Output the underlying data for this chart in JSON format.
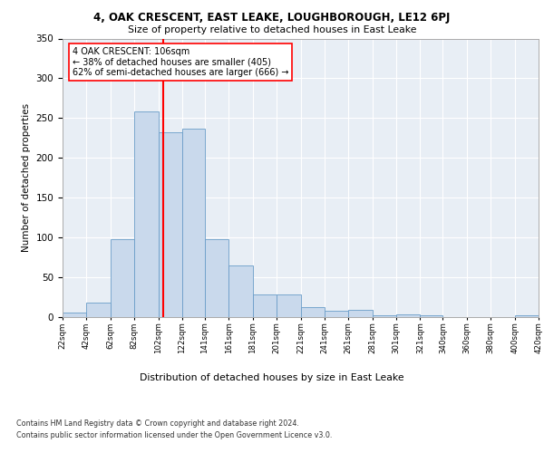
{
  "title1": "4, OAK CRESCENT, EAST LEAKE, LOUGHBOROUGH, LE12 6PJ",
  "title2": "Size of property relative to detached houses in East Leake",
  "xlabel": "Distribution of detached houses by size in East Leake",
  "ylabel": "Number of detached properties",
  "bin_labels": [
    "22sqm",
    "42sqm",
    "62sqm",
    "82sqm",
    "102sqm",
    "122sqm",
    "141sqm",
    "161sqm",
    "181sqm",
    "201sqm",
    "221sqm",
    "241sqm",
    "261sqm",
    "281sqm",
    "301sqm",
    "321sqm",
    "340sqm",
    "360sqm",
    "380sqm",
    "400sqm",
    "420sqm"
  ],
  "bar_values": [
    6,
    18,
    98,
    258,
    232,
    237,
    98,
    65,
    29,
    29,
    13,
    8,
    9,
    2,
    3,
    2,
    0,
    0,
    0,
    2
  ],
  "bar_color": "#c9d9ec",
  "bar_edge_color": "#6a9dc8",
  "vline_x": 106,
  "vline_color": "red",
  "annotation_text": "4 OAK CRESCENT: 106sqm\n← 38% of detached houses are smaller (405)\n62% of semi-detached houses are larger (666) →",
  "annotation_box_color": "white",
  "annotation_box_edge_color": "red",
  "ylim": [
    0,
    350
  ],
  "yticks": [
    0,
    50,
    100,
    150,
    200,
    250,
    300,
    350
  ],
  "bg_color": "#e8eef5",
  "footnote1": "Contains HM Land Registry data © Crown copyright and database right 2024.",
  "footnote2": "Contains public sector information licensed under the Open Government Licence v3.0.",
  "bin_edges": [
    22,
    42,
    62,
    82,
    102,
    122,
    141,
    161,
    181,
    201,
    221,
    241,
    261,
    281,
    301,
    321,
    340,
    360,
    380,
    400,
    420
  ]
}
